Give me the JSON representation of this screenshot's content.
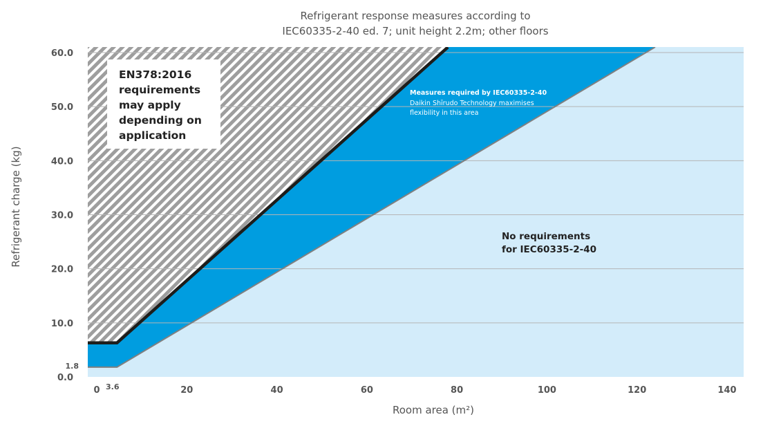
{
  "chart_data": {
    "type": "area",
    "title_lines": [
      "Refrigerant response measures according to",
      "IEC60335-2-40 ed. 7; unit height 2.2m; other floors"
    ],
    "xlabel": "Room area (m²)",
    "ylabel": "Refrigerant charge (kg)",
    "xlim": [
      0,
      144
    ],
    "ylim": [
      0,
      61
    ],
    "x_ticks": [
      {
        "value": 0,
        "label": "0"
      },
      {
        "value": 3.6,
        "label": "3.6"
      },
      {
        "value": 20,
        "label": "20"
      },
      {
        "value": 40,
        "label": "40"
      },
      {
        "value": 60,
        "label": "60"
      },
      {
        "value": 80,
        "label": "80"
      },
      {
        "value": 100,
        "label": "100"
      },
      {
        "value": 120,
        "label": "120"
      },
      {
        "value": 140,
        "label": "140"
      }
    ],
    "y_ticks": [
      {
        "value": 0,
        "label": "0.0"
      },
      {
        "value": 1.8,
        "label": "1.8"
      },
      {
        "value": 10,
        "label": "10.0"
      },
      {
        "value": 20,
        "label": "20.0"
      },
      {
        "value": 30,
        "label": "30.0"
      },
      {
        "value": 40,
        "label": "40.0"
      },
      {
        "value": 50,
        "label": "50.0"
      },
      {
        "value": 60,
        "label": "60.0"
      }
    ],
    "grid": "horizontal",
    "series": [
      {
        "points": [
          {
            "x": 0,
            "y": 1.8
          },
          {
            "x": 4.5,
            "y": 1.8
          },
          {
            "x": 124,
            "y": 61
          }
        ]
      },
      {
        "points": [
          {
            "x": 0,
            "y": 6.3
          },
          {
            "x": 4.5,
            "y": 6.3
          },
          {
            "x": 78,
            "y": 61
          }
        ]
      }
    ],
    "regions": {
      "en378_box_lines": [
        "EN378:2016",
        "requirements",
        "may apply",
        "depending on",
        "application"
      ],
      "measures_title": "Measures required by IEC60335-2-40",
      "measures_sub_lines": [
        "Daikin Shīrudo Technology maximises",
        "flexibility in this area"
      ],
      "no_requirements_lines": [
        "No requirements",
        "for IEC60335-2-40"
      ]
    },
    "colors": {
      "no_requirements_fill": "#d3ecfa",
      "measures_fill": "#009de0",
      "hatch_light": "#ffffff",
      "hatch_dark": "#9e9e9e",
      "upper_line": "#1d1d1b",
      "lower_line": "#808080",
      "gridline": "#b5b5b5"
    }
  }
}
